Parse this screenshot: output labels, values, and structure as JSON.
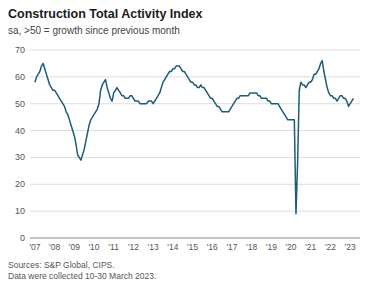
{
  "chart_data": {
    "type": "line",
    "title": "Construction Total Activity Index",
    "subtitle": "sa, >50 = growth since previous month",
    "source_text": "Sources: S&P Global, CIPS.\nData were collected 10-30 March 2023.",
    "color": "#1d5c7a",
    "grid": true,
    "ylim": [
      0,
      70
    ],
    "yticks": [
      0,
      10,
      20,
      30,
      40,
      50,
      60,
      70
    ],
    "categories": [
      "'07",
      null,
      null,
      null,
      null,
      null,
      null,
      null,
      null,
      null,
      null,
      null,
      "'08",
      null,
      null,
      null,
      null,
      null,
      null,
      null,
      null,
      null,
      null,
      null,
      "'09",
      null,
      null,
      null,
      null,
      null,
      null,
      null,
      null,
      null,
      null,
      null,
      "'10",
      null,
      null,
      null,
      null,
      null,
      null,
      null,
      null,
      null,
      null,
      null,
      "'11",
      null,
      null,
      null,
      null,
      null,
      null,
      null,
      null,
      null,
      null,
      null,
      "'12",
      null,
      null,
      null,
      null,
      null,
      null,
      null,
      null,
      null,
      null,
      null,
      "'13",
      null,
      null,
      null,
      null,
      null,
      null,
      null,
      null,
      null,
      null,
      null,
      "'14",
      null,
      null,
      null,
      null,
      null,
      null,
      null,
      null,
      null,
      null,
      null,
      "'15",
      null,
      null,
      null,
      null,
      null,
      null,
      null,
      null,
      null,
      null,
      null,
      "'16",
      null,
      null,
      null,
      null,
      null,
      null,
      null,
      null,
      null,
      null,
      null,
      "'17",
      null,
      null,
      null,
      null,
      null,
      null,
      null,
      null,
      null,
      null,
      null,
      "'18",
      null,
      null,
      null,
      null,
      null,
      null,
      null,
      null,
      null,
      null,
      null,
      "'19",
      null,
      null,
      null,
      null,
      null,
      null,
      null,
      null,
      null,
      null,
      null,
      "'20",
      null,
      null,
      null,
      null,
      null,
      null,
      null,
      null,
      null,
      null,
      null,
      "'21",
      null,
      null,
      null,
      null,
      null,
      null,
      null,
      null,
      null,
      null,
      null,
      "'22",
      null,
      null,
      null,
      null,
      null,
      null,
      null,
      null,
      null,
      null,
      null,
      "'23",
      null,
      null
    ],
    "values": [
      58,
      60,
      61,
      62,
      64,
      65,
      63,
      61,
      59,
      57,
      56,
      55,
      55,
      54,
      53,
      52,
      51,
      50,
      49,
      47,
      46,
      44,
      42,
      40,
      38,
      35,
      31,
      30,
      29,
      31,
      33,
      36,
      39,
      42,
      44,
      45,
      46,
      47,
      48,
      50,
      55,
      57,
      58,
      59,
      56,
      54,
      52,
      51,
      54,
      55,
      56,
      55,
      54,
      53,
      53,
      52,
      52,
      52,
      53,
      53,
      52,
      51,
      51,
      51,
      50,
      50,
      50,
      50,
      50,
      51,
      51,
      51,
      50,
      51,
      52,
      53,
      54,
      56,
      58,
      59,
      60,
      61,
      62,
      62,
      63,
      63,
      64,
      64,
      64,
      63,
      62,
      62,
      61,
      60,
      59,
      58,
      58,
      57,
      57,
      56,
      56,
      57,
      56,
      56,
      55,
      54,
      53,
      52,
      52,
      51,
      50,
      49,
      49,
      48,
      47,
      47,
      47,
      47,
      47,
      48,
      49,
      50,
      51,
      52,
      52,
      53,
      53,
      53,
      53,
      53,
      53,
      54,
      54,
      54,
      54,
      54,
      53,
      53,
      52,
      52,
      52,
      52,
      51,
      51,
      50,
      50,
      50,
      50,
      50,
      49,
      48,
      47,
      46,
      45,
      44,
      44,
      44,
      44,
      44,
      9,
      28,
      55,
      58,
      57,
      57,
      56,
      57,
      58,
      58,
      59,
      61,
      61,
      62,
      63,
      65,
      66,
      62,
      59,
      56,
      54,
      53,
      53,
      52,
      52,
      51,
      52,
      53,
      53,
      52,
      52,
      51,
      49,
      50,
      51,
      52
    ]
  }
}
